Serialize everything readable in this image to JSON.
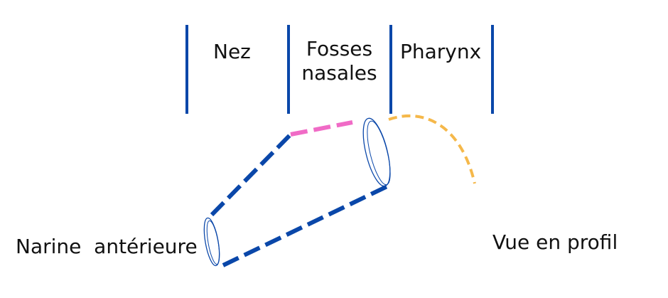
{
  "labels": {
    "nez": "Nez",
    "fosses_line1": "Fosses",
    "fosses_line2": "nasales",
    "pharynx": "Pharynx",
    "narine": "Narine  antérieure",
    "vue": "Vue en profil"
  },
  "colors": {
    "divider": "#0a47a9",
    "nose_outline": "#0a47a9",
    "nasal_fossa_top": "#f06bc6",
    "pharynx_curve": "#f5b84a",
    "text": "#111111"
  }
}
